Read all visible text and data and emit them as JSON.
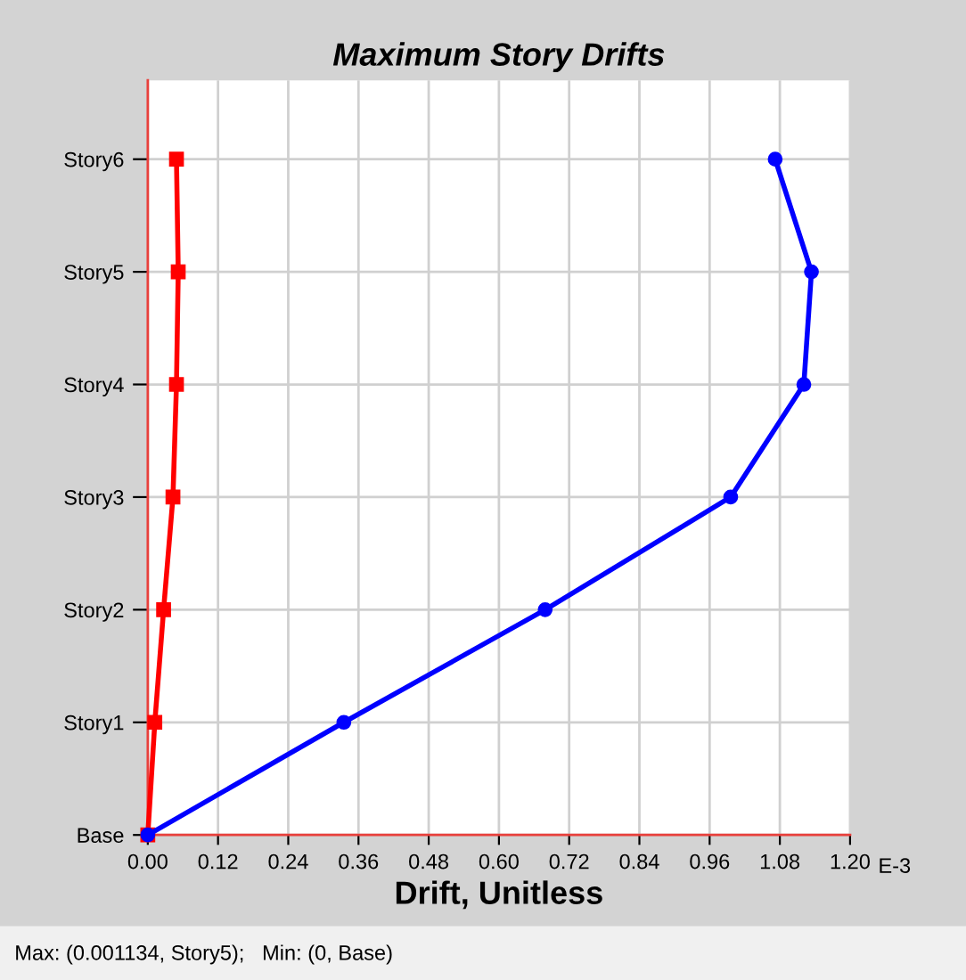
{
  "chart_data": {
    "type": "line",
    "title": "Maximum Story Drifts",
    "xlabel": "Drift, Unitless",
    "orientation": "horizontal",
    "categories": [
      "Story6",
      "Story5",
      "Story4",
      "Story3",
      "Story2",
      "Story1",
      "Base"
    ],
    "series": [
      {
        "color": "#ff0000",
        "marker": "square",
        "values": [
          0.049,
          0.052,
          0.049,
          0.043,
          0.027,
          0.012,
          0
        ]
      },
      {
        "color": "#0000ff",
        "marker": "circle",
        "values": [
          1.072,
          1.134,
          1.121,
          0.996,
          0.679,
          0.335,
          0
        ]
      }
    ],
    "xlim": [
      0,
      1.2
    ],
    "xticks": [
      {
        "value": 0,
        "label": "0.00"
      },
      {
        "value": 0.12,
        "label": "0.12"
      },
      {
        "value": 0.24,
        "label": "0.24"
      },
      {
        "value": 0.36,
        "label": "0.36"
      },
      {
        "value": 0.48,
        "label": "0.48"
      },
      {
        "value": 0.6,
        "label": "0.60"
      },
      {
        "value": 0.72,
        "label": "0.72"
      },
      {
        "value": 0.84,
        "label": "0.84"
      },
      {
        "value": 0.96,
        "label": "0.96"
      },
      {
        "value": 1.08,
        "label": "1.08"
      },
      {
        "value": 1.2,
        "label": "1.20"
      }
    ],
    "grid": true,
    "legend": false,
    "annotations": [
      "E-3",
      "Max: (0.001134, Story5);   Min: (0, Base)"
    ]
  }
}
